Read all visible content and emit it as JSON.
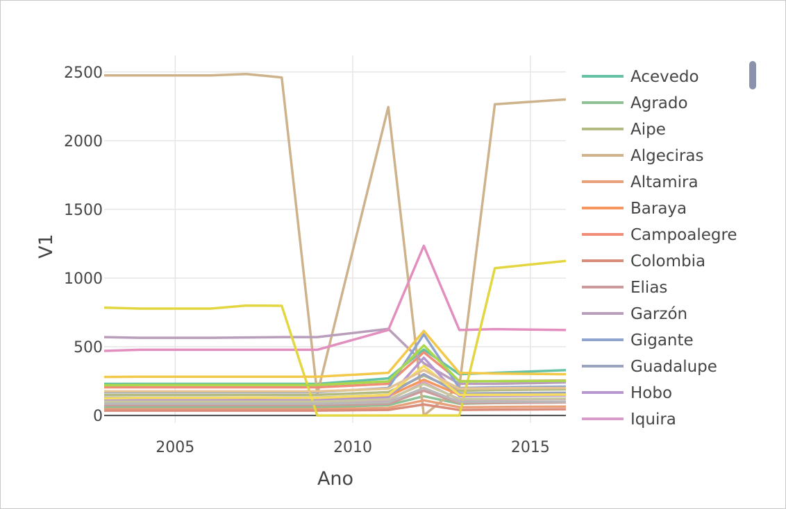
{
  "chart_data": {
    "type": "line",
    "xlabel": "Ano",
    "ylabel": "V1",
    "xlim": [
      2003,
      2016
    ],
    "ylim": [
      -55,
      2620
    ],
    "xticks": [
      2005,
      2010,
      2015
    ],
    "yticks": [
      0,
      500,
      1000,
      1500,
      2000,
      2500
    ],
    "grid": true,
    "legend_position": "right",
    "x": [
      2003,
      2004,
      2006,
      2007,
      2008,
      2009,
      2011,
      2012,
      2013,
      2014,
      2016
    ],
    "series": [
      {
        "name": "Acevedo",
        "color": "#66c2a5",
        "values": [
          230,
          230,
          230,
          230,
          230,
          230,
          270,
          480,
          300,
          310,
          330
        ]
      },
      {
        "name": "Agrado",
        "color": "#8fbf94",
        "values": [
          60,
          60,
          60,
          60,
          60,
          60,
          75,
          140,
          85,
          90,
          95
        ]
      },
      {
        "name": "Aipe",
        "color": "#b3bb83",
        "values": [
          150,
          150,
          150,
          150,
          150,
          150,
          170,
          290,
          180,
          185,
          190
        ]
      },
      {
        "name": "Algeciras",
        "color": "#cdb28b",
        "values": [
          2475,
          2475,
          2475,
          2485,
          2460,
          155,
          2245,
          0,
          210,
          2265,
          2300
        ]
      },
      {
        "name": "Altamira",
        "color": "#e8a07a",
        "values": [
          45,
          45,
          45,
          45,
          45,
          45,
          55,
          110,
          60,
          62,
          65
        ]
      },
      {
        "name": "Baraya",
        "color": "#f4965e",
        "values": [
          115,
          115,
          115,
          115,
          115,
          115,
          140,
          260,
          150,
          155,
          160
        ]
      },
      {
        "name": "Campoalegre",
        "color": "#f08d76",
        "values": [
          205,
          205,
          205,
          205,
          205,
          205,
          230,
          460,
          250,
          250,
          255
        ]
      },
      {
        "name": "Colombia",
        "color": "#da8c7a",
        "values": [
          35,
          35,
          35,
          35,
          35,
          35,
          40,
          80,
          40,
          42,
          45
        ]
      },
      {
        "name": "Elias",
        "color": "#cc9a9a",
        "values": [
          75,
          75,
          75,
          75,
          75,
          75,
          85,
          180,
          90,
          92,
          95
        ]
      },
      {
        "name": "Garzón",
        "color": "#b99ebb",
        "values": [
          570,
          565,
          565,
          568,
          570,
          570,
          630,
          380,
          230,
          230,
          240
        ]
      },
      {
        "name": "Gigante",
        "color": "#8ea3d0",
        "values": [
          170,
          170,
          170,
          170,
          170,
          170,
          200,
          590,
          200,
          205,
          210
        ]
      },
      {
        "name": "Guadalupe",
        "color": "#9aa3bd",
        "values": [
          130,
          130,
          130,
          130,
          130,
          130,
          150,
          300,
          160,
          162,
          165
        ]
      },
      {
        "name": "Hobo",
        "color": "#b697d0",
        "values": [
          110,
          110,
          110,
          110,
          110,
          110,
          130,
          420,
          140,
          142,
          145
        ]
      },
      {
        "name": "Iquira",
        "color": "#d99bca",
        "values": [
          95,
          95,
          95,
          95,
          95,
          95,
          110,
          240,
          115,
          118,
          120
        ]
      },
      {
        "name": "",
        "color": "#e28fc0",
        "values": [
          470,
          478,
          478,
          478,
          478,
          478,
          622,
          1235,
          622,
          628,
          622
        ]
      },
      {
        "name": "",
        "color": "#e3d640",
        "values": [
          785,
          778,
          778,
          800,
          798,
          0,
          0,
          0,
          0,
          1072,
          1125
        ]
      },
      {
        "name": "",
        "color": "#a9d84e",
        "values": [
          220,
          222,
          222,
          222,
          222,
          222,
          248,
          510,
          248,
          250,
          252
        ]
      },
      {
        "name": "",
        "color": "#f2c94a",
        "values": [
          280,
          282,
          282,
          282,
          282,
          282,
          310,
          615,
          310,
          305,
          300
        ]
      },
      {
        "name": "",
        "color": "#f6dd62",
        "values": [
          125,
          128,
          128,
          130,
          128,
          128,
          150,
          360,
          150,
          150,
          152
        ]
      },
      {
        "name": "",
        "color": "#c6c6a0",
        "values": [
          100,
          100,
          100,
          100,
          100,
          100,
          118,
          230,
          120,
          120,
          122
        ]
      },
      {
        "name": "",
        "color": "#b8b8b8",
        "values": [
          85,
          85,
          85,
          85,
          85,
          85,
          95,
          200,
          98,
          100,
          100
        ]
      },
      {
        "name": "",
        "color": "#e5c494",
        "values": [
          175,
          175,
          175,
          175,
          175,
          175,
          195,
          330,
          195,
          198,
          200
        ]
      }
    ]
  }
}
